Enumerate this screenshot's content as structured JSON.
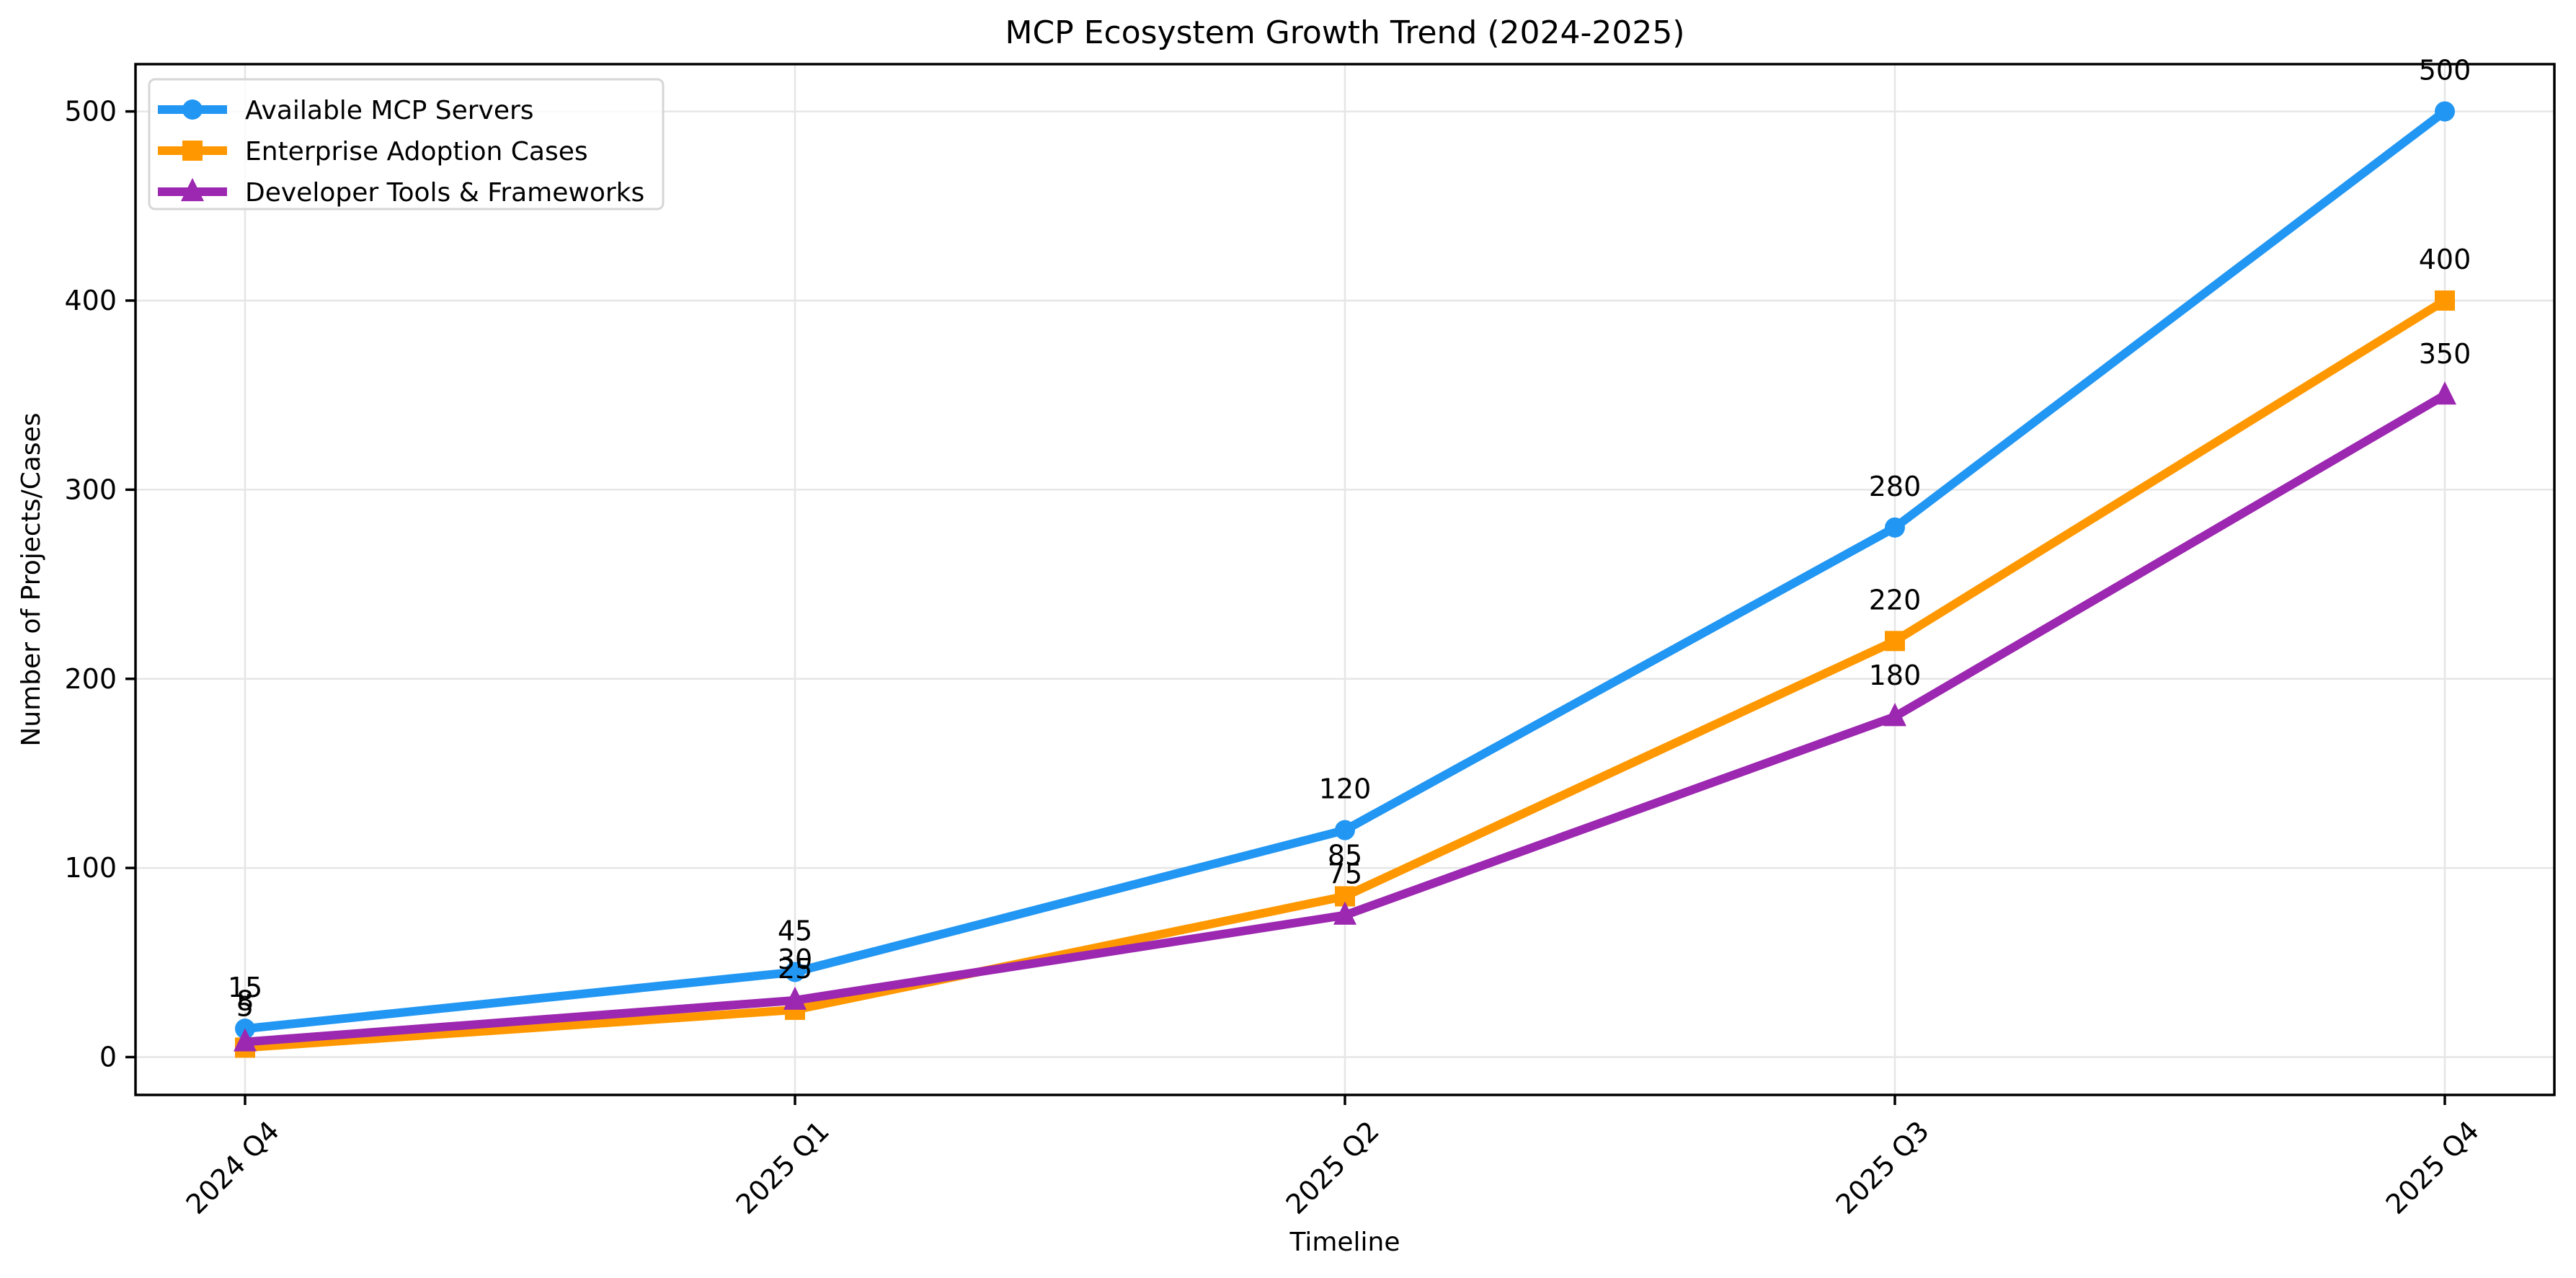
{
  "chart_data": {
    "type": "line",
    "title": "MCP Ecosystem Growth Trend (2024-2025)",
    "xlabel": "Timeline",
    "ylabel": "Number of Projects/Cases",
    "categories": [
      "2024 Q4",
      "2025 Q1",
      "2025 Q2",
      "2025 Q3",
      "2025 Q4"
    ],
    "ylim": [
      -20,
      525
    ],
    "yticks": [
      0,
      100,
      200,
      300,
      400,
      500
    ],
    "x_tick_rotation_deg": 45,
    "grid": true,
    "legend_position": "top-left",
    "data_labels": true,
    "series": [
      {
        "name": "Available MCP Servers",
        "color": "#2196F3",
        "marker": "circle",
        "values": [
          15,
          45,
          120,
          280,
          500
        ]
      },
      {
        "name": "Enterprise Adoption Cases",
        "color": "#FF9800",
        "marker": "square",
        "values": [
          5,
          25,
          85,
          220,
          400
        ]
      },
      {
        "name": "Developer Tools & Frameworks",
        "color": "#9C27B0",
        "marker": "triangle",
        "values": [
          8,
          30,
          75,
          180,
          350
        ]
      }
    ]
  }
}
